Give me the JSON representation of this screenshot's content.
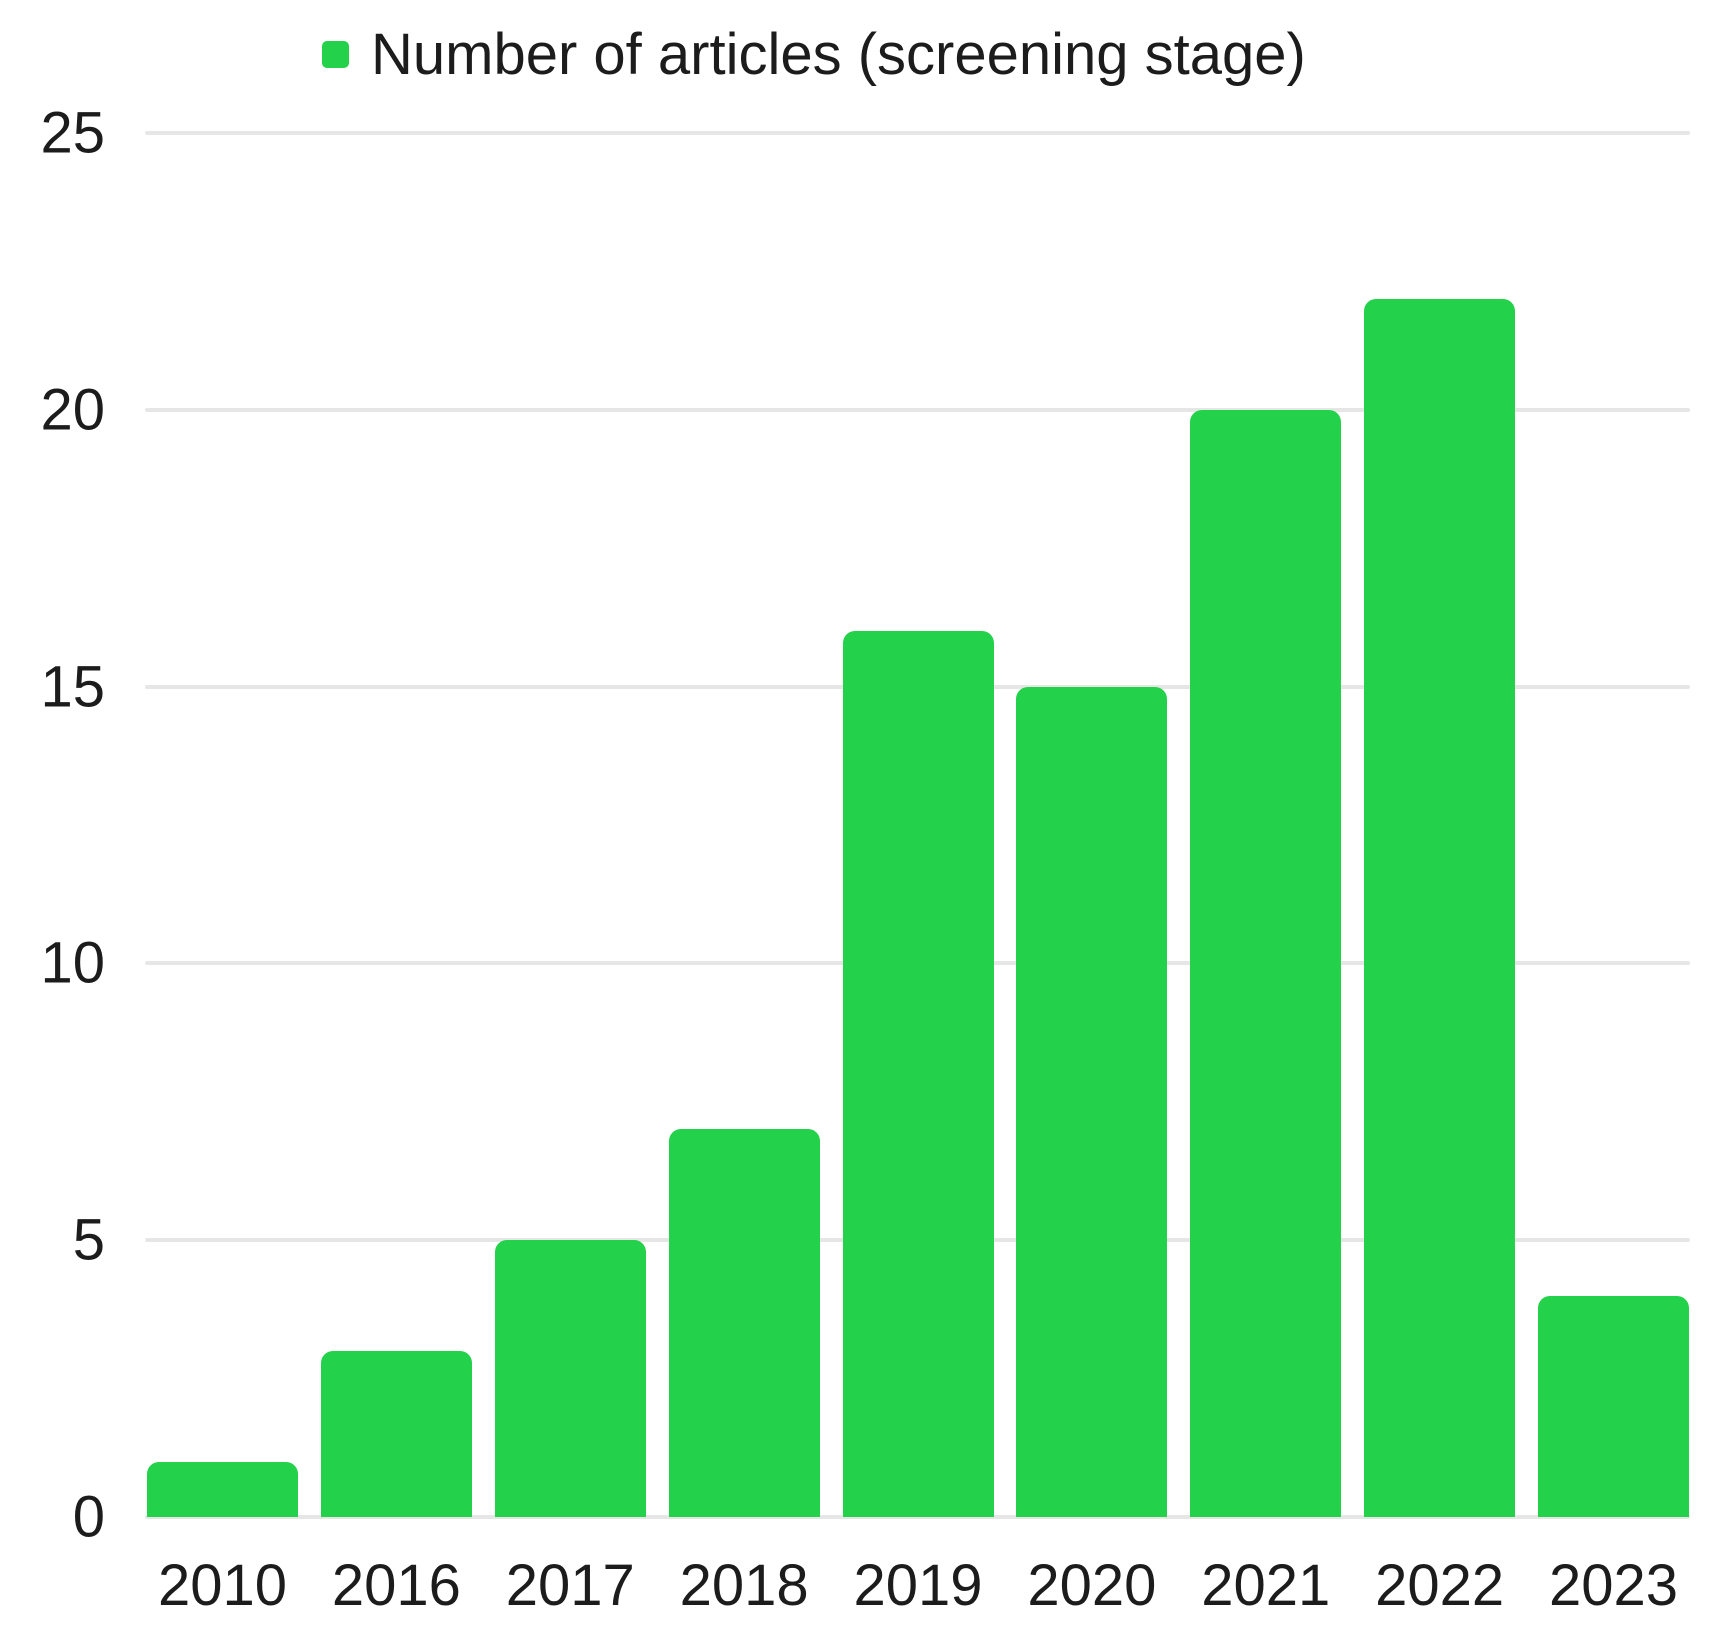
{
  "chart_data": {
    "type": "bar",
    "title": "",
    "legend": {
      "label": "Number of articles (screening stage)",
      "position": "top"
    },
    "categories": [
      "2010",
      "2016",
      "2017",
      "2018",
      "2019",
      "2020",
      "2021",
      "2022",
      "2023"
    ],
    "values": [
      1,
      3,
      5,
      7,
      16,
      15,
      20,
      22,
      4
    ],
    "series": [
      {
        "name": "Number of articles (screening stage)",
        "values": [
          1,
          3,
          5,
          7,
          16,
          15,
          20,
          22,
          4
        ]
      }
    ],
    "xlabel": "",
    "ylabel": "",
    "ylim": [
      0,
      25
    ],
    "yticks": [
      0,
      5,
      10,
      15,
      20,
      25
    ],
    "grid": true,
    "legend_position": "top",
    "colors": {
      "bar": "#23d14b",
      "legend_marker": "#23d14b",
      "gridline": "#e6e6e6",
      "text": "#1c1c1c",
      "background": "#ffffff"
    }
  }
}
